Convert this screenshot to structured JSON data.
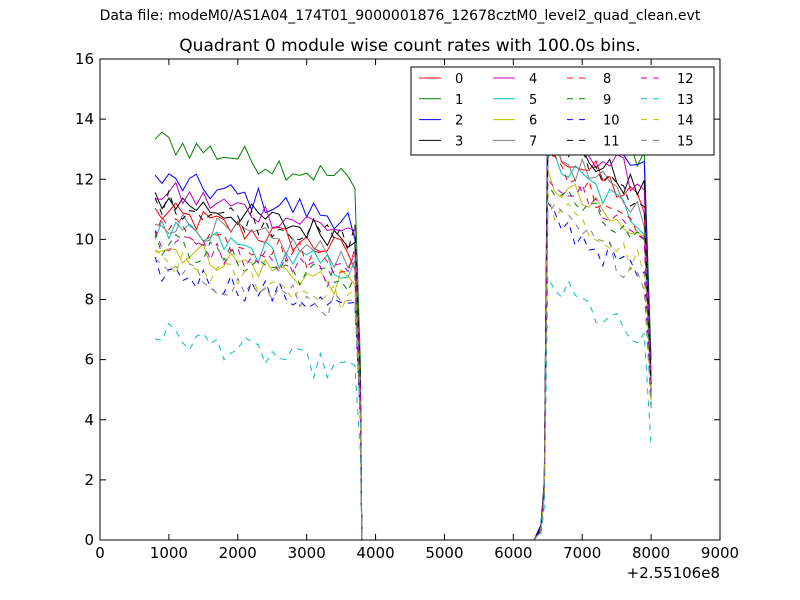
{
  "supertitle": "Data file: modeM0/AS1A04_174T01_9000001876_12678cztM0_level2_quad_clean.evt",
  "chart_data": {
    "type": "line",
    "title": "Quadrant 0 module wise count rates with 100.0s bins.",
    "xlabel": "",
    "ylabel": "",
    "x_offset_label": "+2.55106e8",
    "xlim": [
      0,
      9000
    ],
    "ylim": [
      0,
      16
    ],
    "xticks": [
      0,
      1000,
      2000,
      3000,
      4000,
      5000,
      6000,
      7000,
      8000,
      9000
    ],
    "yticks": [
      0,
      2,
      4,
      6,
      8,
      10,
      12,
      14,
      16
    ],
    "grid": false,
    "legend_position": "top-right",
    "legend_columns": 4,
    "segments": [
      {
        "x_start": 800,
        "x_end": 3800,
        "step": 100
      },
      {
        "x_start": 6500,
        "x_end": 8000,
        "step": 100
      }
    ],
    "series": [
      {
        "name": "0",
        "color": "#ff0000",
        "dash": "solid",
        "level1": 10.2,
        "level2": 12.2,
        "dip_end": 9.0,
        "ramp": [
          0.4,
          1.8
        ],
        "seg2_final": 5.0
      },
      {
        "name": "1",
        "color": "#008000",
        "dash": "solid",
        "level1": 12.6,
        "level2": 13.9,
        "dip_end": 11.7,
        "ramp": [
          0.5,
          2.0
        ],
        "seg2_final": 6.0
      },
      {
        "name": "2",
        "color": "#0000ff",
        "dash": "solid",
        "level1": 11.3,
        "level2": 13.3,
        "dip_end": 10.0,
        "ramp": [
          0.5,
          1.9
        ],
        "seg2_final": 5.5
      },
      {
        "name": "3",
        "color": "#000000",
        "dash": "solid",
        "level1": 10.7,
        "level2": 12.6,
        "dip_end": 9.9,
        "ramp": [
          0.4,
          1.8
        ],
        "seg2_final": 5.2
      },
      {
        "name": "4",
        "color": "#bf00bf",
        "dash": "solid",
        "level1": 10.9,
        "level2": 12.9,
        "dip_end": 10.3,
        "ramp": [
          0.4,
          1.8
        ],
        "seg2_final": 5.3
      },
      {
        "name": "5",
        "color": "#00bfbf",
        "dash": "solid",
        "level1": 9.6,
        "level2": 11.7,
        "dip_end": 9.3,
        "ramp": [
          0.4,
          1.7
        ],
        "seg2_final": 4.8
      },
      {
        "name": "6",
        "color": "#bfbf00",
        "dash": "solid",
        "level1": 9.1,
        "level2": 11.0,
        "dip_end": 8.5,
        "ramp": [
          0.3,
          1.6
        ],
        "seg2_final": 4.6
      },
      {
        "name": "7",
        "color": "#808080",
        "dash": "solid",
        "level1": 10.0,
        "level2": 12.0,
        "dip_end": 9.5,
        "ramp": [
          0.4,
          1.7
        ],
        "seg2_final": 5.0
      },
      {
        "name": "8",
        "color": "#ff0000",
        "dash": "dashed",
        "level1": 9.8,
        "level2": 11.6,
        "dip_end": 9.7,
        "ramp": [
          0.4,
          1.7
        ],
        "seg2_final": 4.9
      },
      {
        "name": "9",
        "color": "#008000",
        "dash": "dashed",
        "level1": 9.2,
        "level2": 10.8,
        "dip_end": 8.8,
        "ramp": [
          0.3,
          1.6
        ],
        "seg2_final": 4.7
      },
      {
        "name": "10",
        "color": "#0000ff",
        "dash": "dashed",
        "level1": 8.3,
        "level2": 9.8,
        "dip_end": 7.9,
        "ramp": [
          0.3,
          1.5
        ],
        "seg2_final": 4.4
      },
      {
        "name": "11",
        "color": "#000000",
        "dash": "dashed",
        "level1": 10.6,
        "level2": 12.4,
        "dip_end": 10.5,
        "ramp": [
          0.4,
          1.8
        ],
        "seg2_final": 5.2
      },
      {
        "name": "12",
        "color": "#bf00bf",
        "dash": "dashed",
        "level1": 9.3,
        "level2": 11.2,
        "dip_end": 9.6,
        "ramp": [
          0.3,
          1.6
        ],
        "seg2_final": 4.8
      },
      {
        "name": "13",
        "color": "#00bfbf",
        "dash": "dashed",
        "level1": 6.2,
        "level2": 7.6,
        "dip_end": 5.8,
        "ramp": [
          0.2,
          1.1
        ],
        "seg2_final": 3.1
      },
      {
        "name": "14",
        "color": "#bfbf00",
        "dash": "dashed",
        "level1": 8.6,
        "level2": 10.2,
        "dip_end": 8.3,
        "ramp": [
          0.3,
          1.5
        ],
        "seg2_final": 4.5
      },
      {
        "name": "15",
        "color": "#808080",
        "dash": "dashed",
        "level1": 8.3,
        "level2": 9.9,
        "dip_end": 8.0,
        "ramp": [
          0.3,
          1.5
        ],
        "seg2_final": 4.4
      }
    ]
  }
}
